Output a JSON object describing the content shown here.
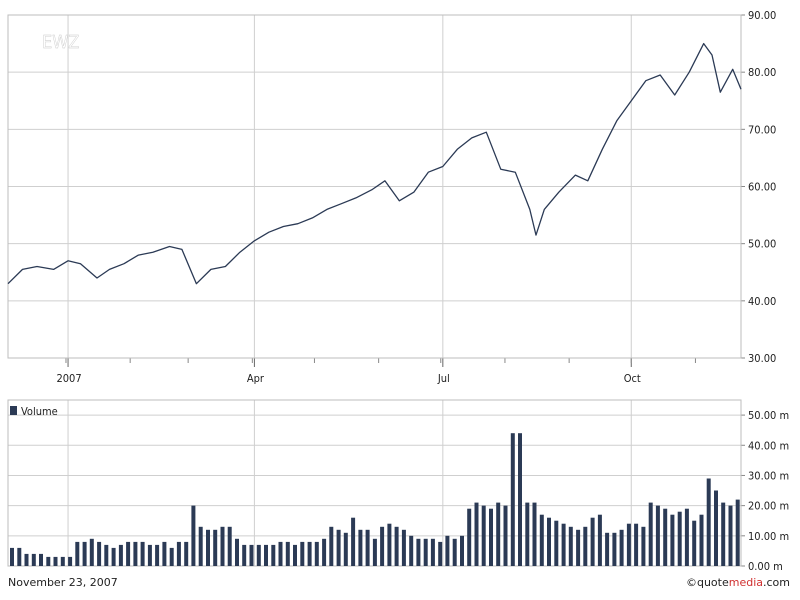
{
  "footer": {
    "date": "November 23, 2007",
    "brand_prefix": "quote",
    "brand_highlight": "media",
    "brand_suffix": ".com"
  },
  "colors": {
    "line": "#2b3a55",
    "bar": "#2b3a55",
    "grid": "#cfcfcf",
    "frame": "#bdbdbd",
    "brand_accent": "#d03030"
  },
  "chart_data": [
    {
      "type": "line",
      "title": "EWZ",
      "ylim": [
        30,
        90
      ],
      "yticks": [
        "90.00",
        "80.00",
        "70.00",
        "60.00",
        "50.00",
        "40.00",
        "30.00"
      ],
      "ytick_values": [
        90,
        80,
        70,
        60,
        50,
        40,
        30
      ],
      "yaxis_side": "right",
      "grid": true,
      "xlim": [
        "2006-12-04",
        "2007-11-23"
      ],
      "xticks": [
        {
          "label": "2007",
          "date": "2007-01-02"
        },
        {
          "label": "Apr",
          "date": "2007-04-02"
        },
        {
          "label": "Jul",
          "date": "2007-07-02"
        },
        {
          "label": "Oct",
          "date": "2007-10-01"
        }
      ],
      "series": [
        {
          "x": [
            "2006-12-04",
            "2006-12-11",
            "2006-12-18",
            "2006-12-26",
            "2007-01-02",
            "2007-01-08",
            "2007-01-16",
            "2007-01-22",
            "2007-01-29",
            "2007-02-05",
            "2007-02-12",
            "2007-02-20",
            "2007-02-26",
            "2007-03-05",
            "2007-03-12",
            "2007-03-19",
            "2007-03-26",
            "2007-04-02",
            "2007-04-09",
            "2007-04-16",
            "2007-04-23",
            "2007-04-30",
            "2007-05-07",
            "2007-05-14",
            "2007-05-21",
            "2007-05-29",
            "2007-06-04",
            "2007-06-11",
            "2007-06-18",
            "2007-06-25",
            "2007-07-02",
            "2007-07-09",
            "2007-07-16",
            "2007-07-23",
            "2007-07-30",
            "2007-08-06",
            "2007-08-13",
            "2007-08-16",
            "2007-08-20",
            "2007-08-27",
            "2007-09-04",
            "2007-09-10",
            "2007-09-17",
            "2007-09-24",
            "2007-10-01",
            "2007-10-08",
            "2007-10-15",
            "2007-10-22",
            "2007-10-29",
            "2007-11-05",
            "2007-11-09",
            "2007-11-13",
            "2007-11-19",
            "2007-11-23"
          ],
          "y": [
            43,
            45.5,
            46,
            45.5,
            47,
            46.5,
            44,
            45.5,
            46.5,
            48,
            48.5,
            49.5,
            49,
            43,
            45.5,
            46,
            48.5,
            50.5,
            52,
            53,
            53.5,
            54.5,
            56,
            57,
            58,
            59.5,
            61,
            57.5,
            59,
            62.5,
            63.5,
            66.5,
            68.5,
            69.5,
            63,
            62.5,
            56,
            51.5,
            56,
            59,
            62,
            61,
            66.5,
            71.5,
            75,
            78.5,
            79.5,
            76,
            80,
            85,
            83,
            76.5,
            80.5,
            77
          ]
        }
      ]
    },
    {
      "type": "bar",
      "legend": [
        "Volume"
      ],
      "legend_position": "top-left",
      "ylim": [
        0,
        55
      ],
      "yticks": [
        "50.00 m",
        "40.00 m",
        "30.00 m",
        "20.00 m",
        "10.00 m",
        "0.00 m"
      ],
      "ytick_values": [
        50,
        40,
        30,
        20,
        10,
        0
      ],
      "yaxis_side": "right",
      "grid": true,
      "series": [
        {
          "name": "Volume",
          "values": [
            6,
            6,
            4,
            4,
            4,
            3,
            3,
            3,
            3,
            8,
            8,
            9,
            8,
            7,
            6,
            7,
            8,
            8,
            8,
            7,
            7,
            8,
            6,
            8,
            8,
            20,
            13,
            12,
            12,
            13,
            13,
            9,
            7,
            7,
            7,
            7,
            7,
            8,
            8,
            7,
            8,
            8,
            8,
            9,
            13,
            12,
            11,
            16,
            12,
            12,
            9,
            13,
            14,
            13,
            12,
            10,
            9,
            9,
            9,
            8,
            10,
            9,
            10,
            19,
            21,
            20,
            19,
            21,
            20,
            44,
            44,
            21,
            21,
            17,
            16,
            15,
            14,
            13,
            12,
            13,
            16,
            17,
            11,
            11,
            12,
            14,
            14,
            13,
            21,
            20,
            19,
            17,
            18,
            19,
            15,
            17,
            29,
            25,
            21,
            20,
            22
          ]
        }
      ]
    }
  ]
}
